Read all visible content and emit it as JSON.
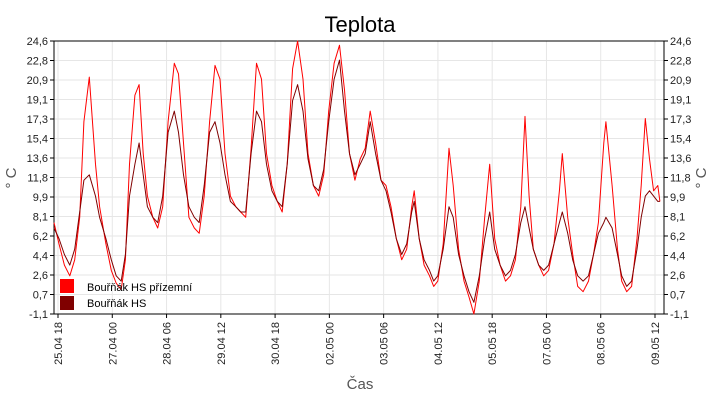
{
  "chart_data": {
    "type": "line",
    "title": "Teplota",
    "xlabel": "Čas",
    "ylabel": "° C",
    "ylabel_right": "° C",
    "ylim": [
      -1.1,
      24.6
    ],
    "y_ticks": [
      "24,6",
      "22,8",
      "20,9",
      "19,1",
      "17,3",
      "15,4",
      "13,6",
      "11,8",
      "9,9",
      "8,1",
      "6,2",
      "4,4",
      "2,6",
      "0,7",
      "-1,1"
    ],
    "x_ticks": [
      "25.04 18",
      "27.04 00",
      "28.04 06",
      "29.04 12",
      "30.04 18",
      "02.05 00",
      "03.05 06",
      "04.05 12",
      "05.05 18",
      "07.05 00",
      "08.05 06",
      "09.05 12"
    ],
    "x_range_days": [
      0,
      14.7
    ],
    "grid": true,
    "legend_position": "bottom-left",
    "colors": {
      "series_1": "#ff0000",
      "series_2": "#800000",
      "grid": "#e6e6e6",
      "axis": "#000000"
    },
    "series": [
      {
        "name": "Bouřňák HS přízemní",
        "points": [
          [
            0.0,
            7.5
          ],
          [
            0.12,
            5.5
          ],
          [
            0.25,
            3.5
          ],
          [
            0.38,
            2.5
          ],
          [
            0.5,
            4.0
          ],
          [
            0.62,
            8.0
          ],
          [
            0.72,
            17.0
          ],
          [
            0.85,
            21.2
          ],
          [
            1.0,
            13.0
          ],
          [
            1.1,
            9.0
          ],
          [
            1.25,
            5.5
          ],
          [
            1.38,
            3.0
          ],
          [
            1.5,
            1.8
          ],
          [
            1.62,
            1.2
          ],
          [
            1.72,
            4.0
          ],
          [
            1.82,
            13.0
          ],
          [
            1.95,
            19.5
          ],
          [
            2.05,
            20.5
          ],
          [
            2.15,
            14.0
          ],
          [
            2.25,
            10.0
          ],
          [
            2.38,
            8.0
          ],
          [
            2.5,
            7.0
          ],
          [
            2.62,
            9.0
          ],
          [
            2.75,
            17.0
          ],
          [
            2.9,
            22.5
          ],
          [
            3.0,
            21.5
          ],
          [
            3.12,
            15.0
          ],
          [
            3.25,
            8.0
          ],
          [
            3.38,
            7.0
          ],
          [
            3.5,
            6.5
          ],
          [
            3.62,
            10.0
          ],
          [
            3.75,
            17.0
          ],
          [
            3.88,
            22.3
          ],
          [
            4.0,
            21.0
          ],
          [
            4.12,
            14.0
          ],
          [
            4.25,
            10.0
          ],
          [
            4.38,
            9.0
          ],
          [
            4.5,
            8.5
          ],
          [
            4.62,
            8.0
          ],
          [
            4.75,
            14.5
          ],
          [
            4.88,
            22.5
          ],
          [
            5.0,
            21.0
          ],
          [
            5.12,
            14.0
          ],
          [
            5.25,
            11.0
          ],
          [
            5.38,
            9.5
          ],
          [
            5.5,
            8.5
          ],
          [
            5.62,
            13.0
          ],
          [
            5.75,
            22.0
          ],
          [
            5.87,
            24.6
          ],
          [
            6.0,
            21.0
          ],
          [
            6.12,
            14.0
          ],
          [
            6.25,
            11.0
          ],
          [
            6.38,
            10.0
          ],
          [
            6.5,
            12.0
          ],
          [
            6.62,
            18.0
          ],
          [
            6.75,
            22.5
          ],
          [
            6.88,
            24.2
          ],
          [
            7.0,
            20.0
          ],
          [
            7.12,
            14.0
          ],
          [
            7.25,
            11.5
          ],
          [
            7.38,
            13.5
          ],
          [
            7.5,
            14.5
          ],
          [
            7.62,
            18.0
          ],
          [
            7.75,
            15.0
          ],
          [
            7.88,
            11.5
          ],
          [
            8.0,
            11.0
          ],
          [
            8.12,
            9.0
          ],
          [
            8.25,
            6.0
          ],
          [
            8.38,
            4.0
          ],
          [
            8.5,
            5.0
          ],
          [
            8.62,
            9.0
          ],
          [
            8.68,
            10.5
          ],
          [
            8.8,
            6.0
          ],
          [
            8.92,
            3.5
          ],
          [
            9.05,
            2.5
          ],
          [
            9.15,
            1.5
          ],
          [
            9.25,
            2.0
          ],
          [
            9.38,
            5.5
          ],
          [
            9.52,
            14.5
          ],
          [
            9.62,
            11.0
          ],
          [
            9.75,
            5.0
          ],
          [
            9.88,
            2.0
          ],
          [
            10.0,
            0.5
          ],
          [
            10.12,
            -1.1
          ],
          [
            10.25,
            2.0
          ],
          [
            10.38,
            8.0
          ],
          [
            10.5,
            13.0
          ],
          [
            10.62,
            6.0
          ],
          [
            10.75,
            3.5
          ],
          [
            10.88,
            2.0
          ],
          [
            11.0,
            2.5
          ],
          [
            11.12,
            4.0
          ],
          [
            11.25,
            9.0
          ],
          [
            11.35,
            17.5
          ],
          [
            11.45,
            10.0
          ],
          [
            11.55,
            5.0
          ],
          [
            11.68,
            3.5
          ],
          [
            11.8,
            2.5
          ],
          [
            11.92,
            3.0
          ],
          [
            12.05,
            5.5
          ],
          [
            12.18,
            10.5
          ],
          [
            12.25,
            14.0
          ],
          [
            12.38,
            8.0
          ],
          [
            12.5,
            4.5
          ],
          [
            12.62,
            1.5
          ],
          [
            12.75,
            1.0
          ],
          [
            12.88,
            2.0
          ],
          [
            13.0,
            4.5
          ],
          [
            13.12,
            7.5
          ],
          [
            13.25,
            15.0
          ],
          [
            13.3,
            17.0
          ],
          [
            13.45,
            11.0
          ],
          [
            13.58,
            5.0
          ],
          [
            13.68,
            2.0
          ],
          [
            13.8,
            1.0
          ],
          [
            13.92,
            1.5
          ],
          [
            14.05,
            6.0
          ],
          [
            14.15,
            11.0
          ],
          [
            14.25,
            17.3
          ],
          [
            14.35,
            13.5
          ],
          [
            14.45,
            10.5
          ],
          [
            14.55,
            11.0
          ],
          [
            14.6,
            9.5
          ]
        ]
      },
      {
        "name": "Bouřňák HS",
        "points": [
          [
            0.0,
            7.0
          ],
          [
            0.12,
            6.0
          ],
          [
            0.25,
            4.5
          ],
          [
            0.38,
            3.5
          ],
          [
            0.5,
            5.0
          ],
          [
            0.62,
            8.5
          ],
          [
            0.72,
            11.5
          ],
          [
            0.85,
            12.0
          ],
          [
            1.0,
            10.0
          ],
          [
            1.1,
            8.0
          ],
          [
            1.25,
            6.0
          ],
          [
            1.38,
            4.0
          ],
          [
            1.5,
            2.5
          ],
          [
            1.62,
            2.0
          ],
          [
            1.72,
            4.5
          ],
          [
            1.82,
            10.0
          ],
          [
            1.95,
            13.0
          ],
          [
            2.05,
            15.0
          ],
          [
            2.15,
            12.0
          ],
          [
            2.25,
            9.0
          ],
          [
            2.38,
            8.0
          ],
          [
            2.5,
            7.5
          ],
          [
            2.62,
            10.0
          ],
          [
            2.75,
            16.0
          ],
          [
            2.9,
            18.0
          ],
          [
            3.0,
            16.0
          ],
          [
            3.12,
            12.0
          ],
          [
            3.25,
            9.0
          ],
          [
            3.38,
            8.0
          ],
          [
            3.5,
            7.5
          ],
          [
            3.62,
            11.0
          ],
          [
            3.75,
            16.0
          ],
          [
            3.88,
            17.0
          ],
          [
            4.0,
            15.0
          ],
          [
            4.12,
            12.0
          ],
          [
            4.25,
            9.5
          ],
          [
            4.38,
            9.0
          ],
          [
            4.5,
            8.5
          ],
          [
            4.62,
            8.5
          ],
          [
            4.75,
            14.0
          ],
          [
            4.88,
            18.0
          ],
          [
            5.0,
            17.0
          ],
          [
            5.12,
            13.0
          ],
          [
            5.25,
            10.5
          ],
          [
            5.38,
            9.5
          ],
          [
            5.5,
            9.0
          ],
          [
            5.62,
            13.0
          ],
          [
            5.75,
            19.0
          ],
          [
            5.87,
            20.5
          ],
          [
            6.0,
            18.0
          ],
          [
            6.12,
            13.5
          ],
          [
            6.25,
            11.0
          ],
          [
            6.38,
            10.5
          ],
          [
            6.5,
            12.5
          ],
          [
            6.62,
            17.0
          ],
          [
            6.75,
            21.0
          ],
          [
            6.88,
            22.8
          ],
          [
            7.0,
            18.0
          ],
          [
            7.12,
            14.0
          ],
          [
            7.25,
            12.0
          ],
          [
            7.38,
            13.0
          ],
          [
            7.5,
            14.0
          ],
          [
            7.62,
            17.0
          ],
          [
            7.75,
            14.0
          ],
          [
            7.88,
            11.5
          ],
          [
            8.0,
            10.5
          ],
          [
            8.12,
            8.5
          ],
          [
            8.25,
            6.0
          ],
          [
            8.38,
            4.5
          ],
          [
            8.5,
            5.5
          ],
          [
            8.62,
            8.5
          ],
          [
            8.68,
            9.5
          ],
          [
            8.8,
            6.0
          ],
          [
            8.92,
            4.0
          ],
          [
            9.05,
            3.0
          ],
          [
            9.15,
            2.0
          ],
          [
            9.25,
            2.5
          ],
          [
            9.38,
            5.0
          ],
          [
            9.52,
            9.0
          ],
          [
            9.62,
            8.0
          ],
          [
            9.75,
            4.5
          ],
          [
            9.88,
            2.5
          ],
          [
            10.0,
            1.0
          ],
          [
            10.12,
            0.0
          ],
          [
            10.25,
            2.5
          ],
          [
            10.38,
            6.0
          ],
          [
            10.5,
            8.5
          ],
          [
            10.62,
            5.0
          ],
          [
            10.75,
            3.5
          ],
          [
            10.88,
            2.5
          ],
          [
            11.0,
            3.0
          ],
          [
            11.12,
            4.5
          ],
          [
            11.25,
            7.5
          ],
          [
            11.35,
            9.0
          ],
          [
            11.45,
            7.0
          ],
          [
            11.55,
            5.0
          ],
          [
            11.68,
            3.5
          ],
          [
            11.8,
            3.0
          ],
          [
            11.92,
            3.5
          ],
          [
            12.05,
            5.5
          ],
          [
            12.18,
            7.5
          ],
          [
            12.25,
            8.5
          ],
          [
            12.38,
            6.5
          ],
          [
            12.5,
            4.0
          ],
          [
            12.62,
            2.5
          ],
          [
            12.75,
            2.0
          ],
          [
            12.88,
            2.5
          ],
          [
            13.0,
            4.5
          ],
          [
            13.12,
            6.5
          ],
          [
            13.25,
            7.5
          ],
          [
            13.3,
            8.0
          ],
          [
            13.45,
            7.0
          ],
          [
            13.58,
            4.5
          ],
          [
            13.68,
            2.5
          ],
          [
            13.8,
            1.5
          ],
          [
            13.92,
            2.0
          ],
          [
            14.05,
            5.0
          ],
          [
            14.15,
            8.0
          ],
          [
            14.25,
            10.0
          ],
          [
            14.35,
            10.5
          ],
          [
            14.45,
            10.0
          ],
          [
            14.55,
            9.5
          ],
          [
            14.6,
            9.5
          ]
        ]
      }
    ]
  }
}
